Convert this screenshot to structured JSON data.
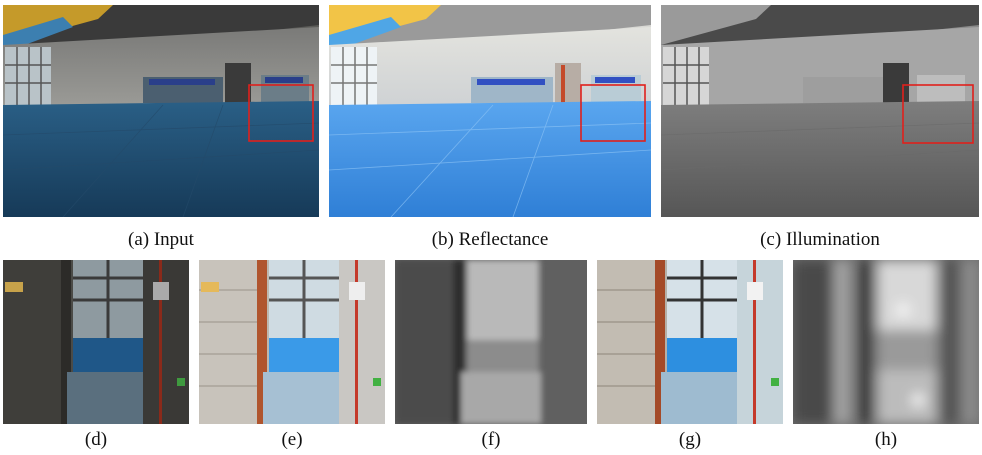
{
  "figure": {
    "panels": [
      {
        "id": "a",
        "caption": "(a) Input"
      },
      {
        "id": "b",
        "caption": "(b) Reflectance"
      },
      {
        "id": "c",
        "caption": "(c) Illumination"
      },
      {
        "id": "d",
        "caption": "(d)"
      },
      {
        "id": "e",
        "caption": "(e)"
      },
      {
        "id": "f",
        "caption": "(f)"
      },
      {
        "id": "g",
        "caption": "(g)"
      },
      {
        "id": "h",
        "caption": "(h)"
      }
    ],
    "colors": {
      "highlight_box": "#e0201c",
      "floor_input": "#1f4f78",
      "floor_reflectance": "#3f8fe0",
      "wall_input": "#8f8f8f",
      "wall_reflectance": "#dcdcdc"
    }
  }
}
